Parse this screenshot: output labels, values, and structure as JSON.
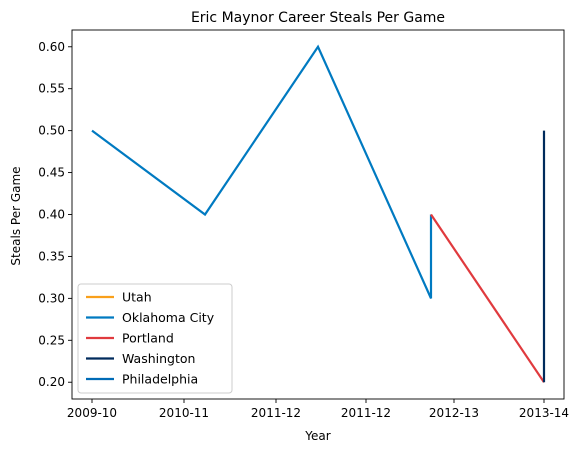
{
  "chart_data": {
    "type": "line",
    "title": "Eric Maynor Career Steals Per Game",
    "xlabel": "Year",
    "ylabel": "Steals Per Game",
    "ylim": [
      0.18,
      0.62
    ],
    "x_ticks": [
      "2009-10",
      "2010-11",
      "2011-12",
      "2011-12",
      "2012-13",
      "2013-14"
    ],
    "y_ticks": [
      "0.20",
      "0.25",
      "0.30",
      "0.35",
      "0.40",
      "0.45",
      "0.50",
      "0.55",
      "0.60"
    ],
    "legend_position": "lower-left",
    "grid": false,
    "series": [
      {
        "name": "Utah",
        "color": "#F9A01B",
        "points": []
      },
      {
        "name": "Oklahoma City",
        "color": "#007AC1",
        "points": [
          [
            "2009-10",
            0.5
          ],
          [
            "2010-11",
            0.4
          ],
          [
            "2011-12",
            0.6
          ],
          [
            "2012-13",
            0.3
          ],
          [
            "2012-13",
            0.4
          ]
        ]
      },
      {
        "name": "Portland",
        "color": "#E03A3E",
        "points": [
          [
            "2012-13",
            0.4
          ],
          [
            "2013-14",
            0.2
          ]
        ]
      },
      {
        "name": "Washington",
        "color": "#002B5C",
        "points": [
          [
            "2013-14",
            0.2
          ],
          [
            "2013-14",
            0.5
          ]
        ]
      },
      {
        "name": "Philadelphia",
        "color": "#006BB6",
        "points": []
      }
    ]
  }
}
